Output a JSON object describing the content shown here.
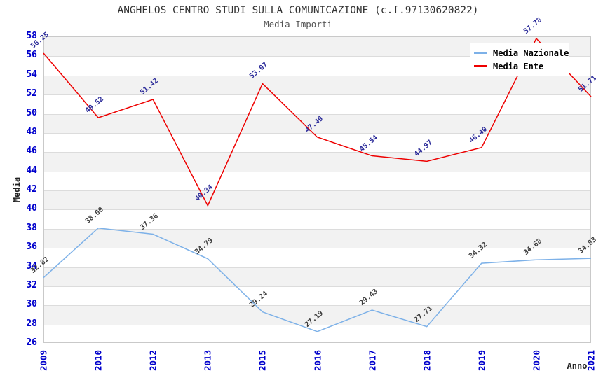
{
  "page": {
    "title": "ANGHELOS CENTRO STUDI SULLA COMUNICAZIONE (c.f.97130620822)",
    "subtitle": "Media Importi"
  },
  "chart_data": {
    "type": "line",
    "title": "ANGHELOS CENTRO STUDI SULLA COMUNICAZIONE (c.f.97130620822)",
    "subtitle": "Media Importi",
    "xlabel": "Anno",
    "ylabel": "Media",
    "ylim": [
      26,
      58
    ],
    "ytick_step": 2,
    "grid": "horizontal-bands-alternating",
    "band_color": "#f2f2f2",
    "gridline_color": "#dcdcdc",
    "tick_label_color": "#0000cc",
    "legend_position": "top-right",
    "categories": [
      "2009",
      "2010",
      "2012",
      "2013",
      "2015",
      "2016",
      "2017",
      "2018",
      "2019",
      "2020",
      "2021"
    ],
    "series": [
      {
        "name": "Media Nazionale",
        "color": "#7db1e8",
        "label_color": "#3c3c3c",
        "values": [
          32.82,
          38.0,
          37.36,
          34.79,
          29.24,
          27.19,
          29.43,
          27.71,
          34.32,
          34.68,
          34.83
        ]
      },
      {
        "name": "Media Ente",
        "color": "#ee0000",
        "label_color": "#2b2b99",
        "values": [
          56.25,
          49.52,
          51.42,
          40.34,
          53.07,
          47.49,
          45.54,
          44.97,
          46.4,
          57.78,
          51.71
        ]
      }
    ]
  }
}
